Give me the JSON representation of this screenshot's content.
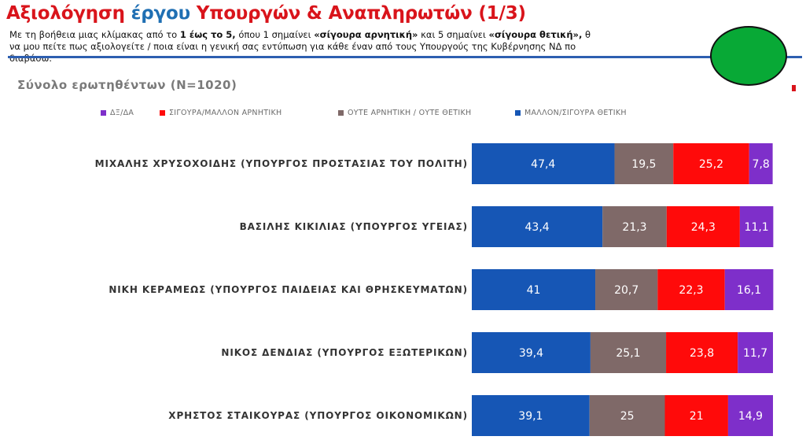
{
  "header": {
    "title_part1": "Αξιολόγηση ",
    "title_part2": "έργου",
    "title_part3": " Υπουργών & Αναπληρωτών (1/3)",
    "desc_l1_a": "Με τη βοήθεια μιας κλίμακας από το ",
    "desc_l1_b": "1 έως το 5,",
    "desc_l1_c": " όπου 1 σημαίνει ",
    "desc_l1_d": "«σίγουρα αρνητική»",
    "desc_l1_e": " και 5 σημαίνει ",
    "desc_l1_f": "«σίγουρα θετική»,",
    "desc_l1_g": " θ",
    "desc_l2": "να μου πείτε πως αξιολογείτε / ποια είναι η γενική σας εντύπωση για κάθε έναν  από τους Υπουργούς της  Κυβέρνησης ΝΔ πο",
    "desc_l3": "διαβάσω.",
    "total_label": "Σύνολο ερωτηθέντων (N=1020)"
  },
  "colors": {
    "positive": "#1656b5",
    "neutral": "#7f6968",
    "negative": "#ff0a0a",
    "dk": "#7e2fca",
    "title_red": "#d9141b",
    "title_blue": "#1f6fb3",
    "logo_green": "#08a936"
  },
  "chart_data": {
    "type": "bar",
    "orientation": "horizontal",
    "stacked": true,
    "percent_of_total": true,
    "categories": [
      "ΜΙΧΑΛΗΣ ΧΡΥΣΟΧΟΙΔΗΣ (ΥΠΟΥΡΓΟΣ ΠΡΟΣΤΑΣΙΑΣ ΤΟΥ ΠΟΛΙΤΗ)",
      "ΒΑΣΙΛΗΣ ΚΙΚΙΛΙΑΣ (ΥΠΟΥΡΓΟΣ ΥΓΕΙΑΣ)",
      "ΝΙΚΗ ΚΕΡΑΜΕΩΣ (ΥΠΟΥΡΓΟΣ ΠΑΙΔΕΙΑΣ ΚΑΙ ΘΡΗΣΚΕΥΜΑΤΩΝ)",
      "ΝΙΚΟΣ ΔΕΝΔΙΑΣ (ΥΠΟΥΡΓΟΣ ΕΞΩΤΕΡΙΚΩΝ)",
      "ΧΡΗΣΤΟΣ ΣΤΑΙΚΟΥΡΑΣ (ΥΠΟΥΡΓΟΣ ΟΙΚΟΝΟΜΙΚΩΝ)"
    ],
    "series": [
      {
        "name": "ΜΑΛΛΟΝ/ΣΙΓΟΥΡΑ ΘΕΤΙΚΗ",
        "key": "positive",
        "values": [
          47.4,
          43.4,
          41,
          39.4,
          39.1
        ],
        "labels": [
          "47,4",
          "43,4",
          "41",
          "39,4",
          "39,1"
        ]
      },
      {
        "name": "ΟΥΤΕ ΑΡΝΗΤΙΚΗ / ΟΥΤΕ ΘΕΤΙΚΗ",
        "key": "neutral",
        "values": [
          19.5,
          21.3,
          20.7,
          25.1,
          25
        ],
        "labels": [
          "19,5",
          "21,3",
          "20,7",
          "25,1",
          "25"
        ]
      },
      {
        "name": "ΣΙΓΟΥΡΑ/ΜΑΛΛΟΝ ΑΡΝΗΤΙΚΗ",
        "key": "negative",
        "values": [
          25.2,
          24.3,
          22.3,
          23.8,
          21
        ],
        "labels": [
          "25,2",
          "24,3",
          "22,3",
          "23,8",
          "21"
        ]
      },
      {
        "name": "ΔΞ/ΔΑ",
        "key": "dk",
        "values": [
          7.8,
          11.1,
          16.1,
          11.7,
          14.9
        ],
        "labels": [
          "7,8",
          "11,1",
          "16,1",
          "11,7",
          "14,9"
        ]
      }
    ],
    "legend": [
      {
        "label": "ΔΞ/ΔΑ",
        "key": "dk"
      },
      {
        "label": "ΣΙΓΟΥΡΑ/ΜΑΛΛΟΝ ΑΡΝΗΤΙΚΗ",
        "key": "negative"
      },
      {
        "label": "ΟΥΤΕ ΑΡΝΗΤΙΚΗ / ΟΥΤΕ ΘΕΤΙΚΗ",
        "key": "neutral"
      },
      {
        "label": "ΜΑΛΛΟΝ/ΣΙΓΟΥΡΑ ΘΕΤΙΚΗ",
        "key": "positive"
      }
    ],
    "legend_position": "top",
    "grid": false,
    "xlim": [
      0,
      100
    ]
  }
}
